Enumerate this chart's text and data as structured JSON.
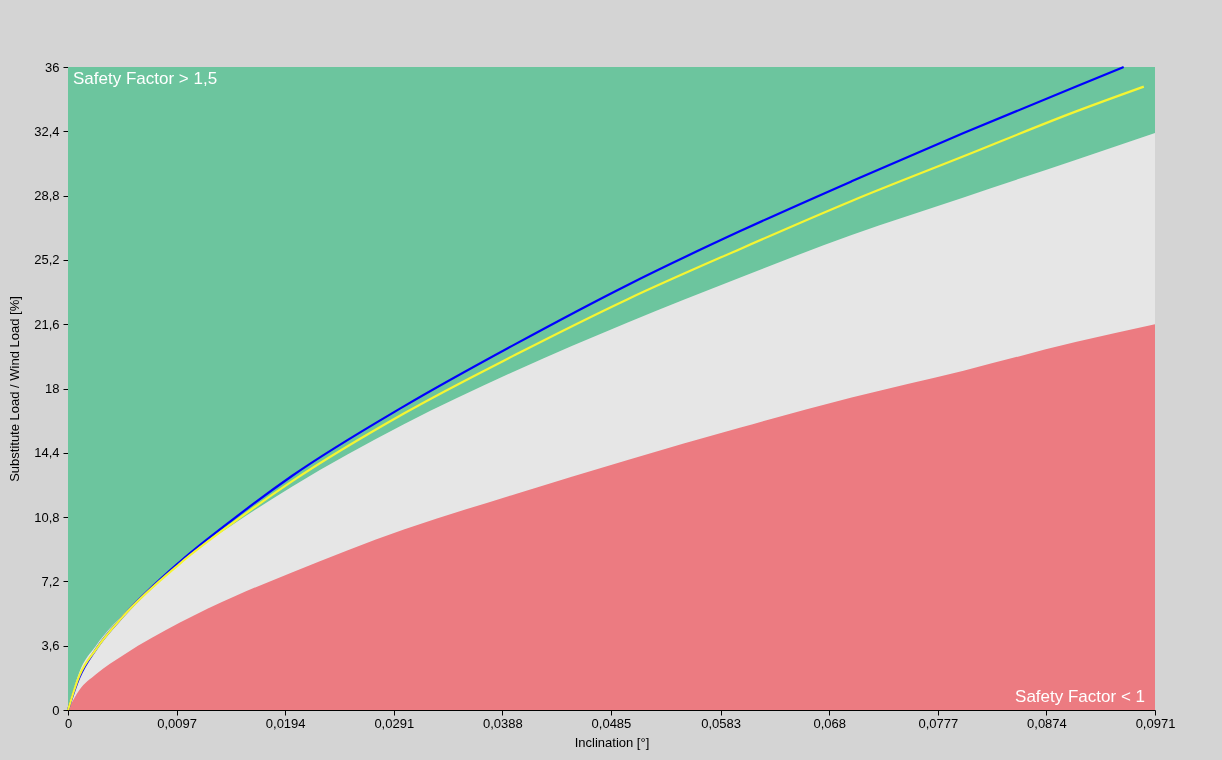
{
  "chart_data": {
    "type": "area",
    "xlabel": "Inclination [°]",
    "ylabel": "Substitute Load / Wind Load [%]",
    "x": [
      0,
      0.001,
      0.0025,
      0.005,
      0.01,
      0.015,
      0.02,
      0.03,
      0.04,
      0.05,
      0.06,
      0.07,
      0.08,
      0.09,
      0.0971
    ],
    "series": [
      {
        "color": "#e6e6e6",
        "values": [
          0,
          2.1,
          3.6,
          5.4,
          8.3,
          10.5,
          12.5,
          16.0,
          19.0,
          21.7,
          24.2,
          26.6,
          28.7,
          30.8,
          32.3
        ]
      },
      {
        "name": "Safety Factor < 1",
        "color": "#ec7b81",
        "values": [
          0,
          1.1,
          2.0,
          3.1,
          4.9,
          6.4,
          7.7,
          10.1,
          12.1,
          14.0,
          15.8,
          17.5,
          19.0,
          20.6,
          21.6
        ]
      },
      {
        "type": "line",
        "color": "#0000ff",
        "x": [
          0,
          0.001,
          0.0025,
          0.005,
          0.01,
          0.015,
          0.02,
          0.03,
          0.04,
          0.05,
          0.06,
          0.07,
          0.08,
          0.09,
          0.0943
        ],
        "values": [
          0,
          1.8,
          3.4,
          5.3,
          8.3,
          10.8,
          13.1,
          17.0,
          20.5,
          23.8,
          26.8,
          29.6,
          32.3,
          34.9,
          36
        ]
      },
      {
        "type": "line",
        "color": "#f5f532",
        "x": [
          0,
          0.001,
          0.0025,
          0.005,
          0.01,
          0.015,
          0.02,
          0.03,
          0.04,
          0.05,
          0.06,
          0.07,
          0.08,
          0.09,
          0.0961
        ],
        "values": [
          0,
          1.9,
          3.4,
          5.3,
          8.2,
          10.6,
          12.8,
          16.6,
          19.9,
          23.0,
          25.8,
          28.5,
          31.0,
          33.5,
          34.9
        ]
      }
    ],
    "bands": [
      {
        "axis": "y",
        "from": 0,
        "to": 36,
        "label": "Safety Factor > 1,5",
        "color": "#6cc59e"
      }
    ],
    "xlim": [
      0,
      0.0971
    ],
    "ylim": [
      0,
      36
    ],
    "xticks": [
      0,
      {
        "value": 0.0097,
        "label": "0,0097"
      },
      {
        "value": 0.0194,
        "label": "0,0194"
      },
      {
        "value": 0.0291,
        "label": "0,0291"
      },
      {
        "value": 0.0388,
        "label": "0,0388"
      },
      {
        "value": 0.0485,
        "label": "0,0485"
      },
      {
        "value": 0.0583,
        "label": "0,0583"
      },
      {
        "value": 0.068,
        "label": "0,068"
      },
      {
        "value": 0.0777,
        "label": "0,0777"
      },
      {
        "value": 0.0874,
        "label": "0,0874"
      },
      {
        "value": 0.0971,
        "label": "0,0971"
      }
    ],
    "yticks": [
      0,
      {
        "value": 3.6,
        "label": "3,6"
      },
      {
        "value": 7.2,
        "label": "7,2"
      },
      {
        "value": 10.8,
        "label": "10,8"
      },
      {
        "value": 14.4,
        "label": "14,4"
      },
      18,
      {
        "value": 21.6,
        "label": "21,6"
      },
      {
        "value": 25.2,
        "label": "25,2"
      },
      {
        "value": 28.8,
        "label": "28,8"
      },
      {
        "value": 32.4,
        "label": "32,4"
      },
      36
    ],
    "grid": false,
    "legend": false
  }
}
